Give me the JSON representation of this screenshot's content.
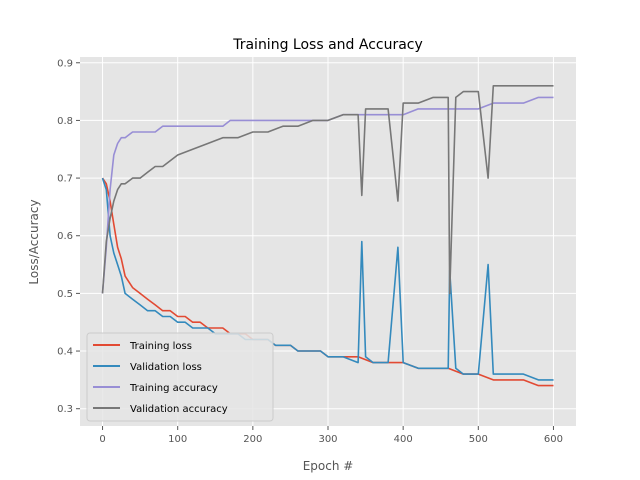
{
  "chart_data": {
    "type": "line",
    "title": "Training Loss and Accuracy",
    "xlabel": "Epoch #",
    "ylabel": "Loss/Accuracy",
    "xlim": [
      -30,
      630
    ],
    "ylim": [
      0.27,
      0.91
    ],
    "xticks": [
      0,
      100,
      200,
      300,
      400,
      500,
      600
    ],
    "yticks": [
      0.3,
      0.4,
      0.5,
      0.6,
      0.7,
      0.8,
      0.9
    ],
    "grid": true,
    "legend_position": "lower-left",
    "series": [
      {
        "name": "Training loss",
        "color": "#E24A33",
        "x": [
          0,
          5,
          10,
          15,
          20,
          25,
          30,
          40,
          50,
          60,
          70,
          80,
          90,
          100,
          110,
          120,
          130,
          140,
          150,
          160,
          170,
          180,
          190,
          200,
          210,
          220,
          230,
          240,
          250,
          260,
          270,
          280,
          290,
          300,
          320,
          340,
          360,
          380,
          400,
          420,
          440,
          460,
          480,
          500,
          520,
          540,
          560,
          580,
          600
        ],
        "y": [
          0.7,
          0.69,
          0.66,
          0.62,
          0.58,
          0.56,
          0.53,
          0.51,
          0.5,
          0.49,
          0.48,
          0.47,
          0.47,
          0.46,
          0.46,
          0.45,
          0.45,
          0.44,
          0.44,
          0.44,
          0.43,
          0.43,
          0.43,
          0.42,
          0.42,
          0.42,
          0.41,
          0.41,
          0.41,
          0.4,
          0.4,
          0.4,
          0.4,
          0.39,
          0.39,
          0.39,
          0.38,
          0.38,
          0.38,
          0.37,
          0.37,
          0.37,
          0.36,
          0.36,
          0.35,
          0.35,
          0.35,
          0.34,
          0.34
        ]
      },
      {
        "name": "Validation loss",
        "color": "#348ABD",
        "x": [
          0,
          5,
          10,
          15,
          20,
          25,
          30,
          40,
          50,
          60,
          70,
          80,
          90,
          100,
          110,
          120,
          130,
          140,
          150,
          160,
          170,
          180,
          190,
          200,
          210,
          220,
          230,
          240,
          250,
          260,
          270,
          280,
          290,
          300,
          320,
          340,
          345,
          350,
          360,
          380,
          393,
          400,
          420,
          440,
          460,
          462,
          470,
          480,
          500,
          513,
          520,
          540,
          560,
          580,
          600
        ],
        "y": [
          0.7,
          0.68,
          0.6,
          0.57,
          0.55,
          0.53,
          0.5,
          0.49,
          0.48,
          0.47,
          0.47,
          0.46,
          0.46,
          0.45,
          0.45,
          0.44,
          0.44,
          0.44,
          0.43,
          0.43,
          0.43,
          0.43,
          0.42,
          0.42,
          0.42,
          0.42,
          0.41,
          0.41,
          0.41,
          0.4,
          0.4,
          0.4,
          0.4,
          0.39,
          0.39,
          0.38,
          0.59,
          0.39,
          0.38,
          0.38,
          0.58,
          0.38,
          0.37,
          0.37,
          0.37,
          0.54,
          0.37,
          0.36,
          0.36,
          0.55,
          0.36,
          0.36,
          0.36,
          0.35,
          0.35
        ]
      },
      {
        "name": "Training accuracy",
        "color": "#988ED5",
        "x": [
          0,
          5,
          10,
          15,
          20,
          25,
          30,
          40,
          50,
          60,
          70,
          80,
          90,
          100,
          110,
          120,
          130,
          140,
          150,
          160,
          170,
          180,
          190,
          200,
          220,
          240,
          260,
          280,
          300,
          320,
          340,
          360,
          380,
          400,
          420,
          440,
          460,
          480,
          500,
          520,
          540,
          560,
          580,
          600
        ],
        "y": [
          0.5,
          0.58,
          0.68,
          0.74,
          0.76,
          0.77,
          0.77,
          0.78,
          0.78,
          0.78,
          0.78,
          0.79,
          0.79,
          0.79,
          0.79,
          0.79,
          0.79,
          0.79,
          0.79,
          0.79,
          0.8,
          0.8,
          0.8,
          0.8,
          0.8,
          0.8,
          0.8,
          0.8,
          0.8,
          0.81,
          0.81,
          0.81,
          0.81,
          0.81,
          0.82,
          0.82,
          0.82,
          0.82,
          0.82,
          0.83,
          0.83,
          0.83,
          0.84,
          0.84
        ]
      },
      {
        "name": "Validation accuracy",
        "color": "#777777",
        "x": [
          0,
          5,
          10,
          15,
          20,
          25,
          30,
          40,
          50,
          60,
          70,
          80,
          90,
          100,
          120,
          140,
          160,
          180,
          200,
          220,
          240,
          260,
          280,
          300,
          320,
          340,
          345,
          350,
          380,
          393,
          400,
          420,
          440,
          460,
          462,
          470,
          480,
          500,
          513,
          520,
          540,
          560,
          580,
          600
        ],
        "y": [
          0.5,
          0.59,
          0.63,
          0.66,
          0.68,
          0.69,
          0.69,
          0.7,
          0.7,
          0.71,
          0.72,
          0.72,
          0.73,
          0.74,
          0.75,
          0.76,
          0.77,
          0.77,
          0.78,
          0.78,
          0.79,
          0.79,
          0.8,
          0.8,
          0.81,
          0.81,
          0.67,
          0.82,
          0.82,
          0.66,
          0.83,
          0.83,
          0.84,
          0.84,
          0.5,
          0.84,
          0.85,
          0.85,
          0.7,
          0.86,
          0.86,
          0.86,
          0.86,
          0.86
        ]
      }
    ]
  }
}
